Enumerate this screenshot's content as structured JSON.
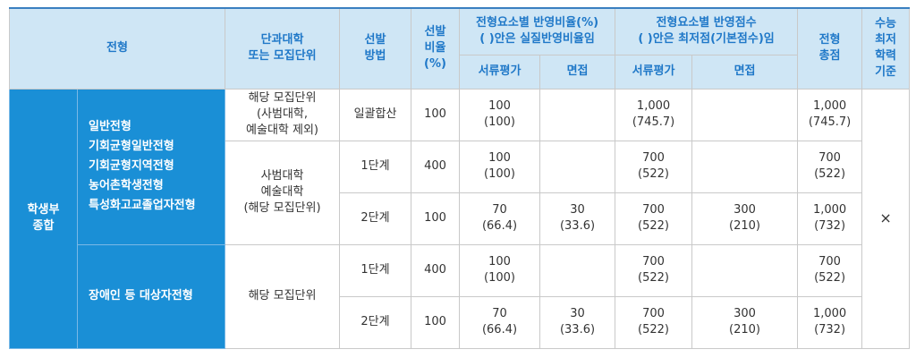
{
  "headers": {
    "type": "전형",
    "unit": "단과대학\n또는 모집단위",
    "method": "선발\n방법",
    "ratio": "선발\n비율\n(%)",
    "elem_ratio": "전형요소별 반영비율(%)\n( )안은 실질반영비율임",
    "elem_score": "전형요소별 반영점수\n( )안은 최저점(기본점수)임",
    "total": "전형\n총점",
    "csat": "수능\n최저\n학력\n기준",
    "doc": "서류평가",
    "interview": "면접"
  },
  "category": "학생부\n종합",
  "groups": [
    {
      "names": "일반전형\n기회균형일반전형\n기회균형지역전형\n농어촌학생전형\n특성화고교졸업자전형",
      "units": [
        {
          "unit": "해당 모집단위\n(사범대학,\n예술대학 제외)",
          "rows": [
            {
              "method": "일괄합산",
              "ratio": "100",
              "doc_ratio": "100\n(100)",
              "int_ratio": "",
              "doc_score": "1,000\n(745.7)",
              "int_score": "",
              "total": "1,000\n(745.7)"
            }
          ]
        },
        {
          "unit": "사범대학\n예술대학\n(해당 모집단위)",
          "rows": [
            {
              "method": "1단계",
              "ratio": "400",
              "doc_ratio": "100\n(100)",
              "int_ratio": "",
              "doc_score": "700\n(522)",
              "int_score": "",
              "total": "700\n(522)"
            },
            {
              "method": "2단계",
              "ratio": "100",
              "doc_ratio": "70\n(66.4)",
              "int_ratio": "30\n(33.6)",
              "doc_score": "700\n(522)",
              "int_score": "300\n(210)",
              "total": "1,000\n(732)"
            }
          ]
        }
      ]
    },
    {
      "names": "장애인 등 대상자전형",
      "units": [
        {
          "unit": "해당 모집단위",
          "rows": [
            {
              "method": "1단계",
              "ratio": "400",
              "doc_ratio": "100\n(100)",
              "int_ratio": "",
              "doc_score": "700\n(522)",
              "int_score": "",
              "total": "700\n(522)"
            },
            {
              "method": "2단계",
              "ratio": "100",
              "doc_ratio": "70\n(66.4)",
              "int_ratio": "30\n(33.6)",
              "doc_score": "700\n(522)",
              "int_score": "300\n(210)",
              "total": "1,000\n(732)"
            }
          ]
        }
      ]
    }
  ],
  "csat_value": "×"
}
